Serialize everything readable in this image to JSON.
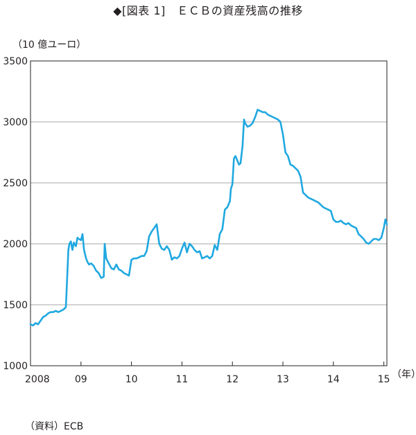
{
  "title": "◆[図表 1]　ＥＣＢの資産残高の推移",
  "source_note": "（資料）ECB",
  "chart_data": {
    "type": "line",
    "title": "◆[図表 1]　ＥＣＢの資産残高の推移",
    "ylabel": "（10 億ユーロ）",
    "xlabel": "（年）",
    "ylim": [
      1000,
      3500
    ],
    "y_ticks": [
      "1000",
      "1500",
      "2000",
      "2500",
      "3000",
      "3500"
    ],
    "x_ticks": [
      {
        "label": "2008",
        "year": 2008.0
      },
      {
        "label": "09",
        "year": 2009.0
      },
      {
        "label": "10",
        "year": 2010.0
      },
      {
        "label": "11",
        "year": 2011.0
      },
      {
        "label": "12",
        "year": 2012.0
      },
      {
        "label": "13",
        "year": 2013.0
      },
      {
        "label": "14",
        "year": 2014.0
      },
      {
        "label": "15",
        "year": 2015.0
      }
    ],
    "grid": "horizontal",
    "line_color": "#1fa8e0",
    "series": [
      {
        "x": [
          2008.0,
          2008.05,
          2008.1,
          2008.15,
          2008.2,
          2008.25,
          2008.3,
          2008.35,
          2008.4,
          2008.45,
          2008.5,
          2008.55,
          2008.6,
          2008.65,
          2008.7,
          2008.73,
          2008.75,
          2008.77,
          2008.8,
          2008.83,
          2008.86,
          2008.9,
          2008.93,
          2008.96,
          2009.0,
          2009.03,
          2009.06,
          2009.1,
          2009.13,
          2009.16,
          2009.2,
          2009.25,
          2009.3,
          2009.35,
          2009.4,
          2009.45,
          2009.47,
          2009.5,
          2009.55,
          2009.6,
          2009.65,
          2009.7,
          2009.75,
          2009.8,
          2009.85,
          2009.9,
          2009.95,
          2010.0,
          2010.05,
          2010.1,
          2010.15,
          2010.2,
          2010.25,
          2010.3,
          2010.35,
          2010.4,
          2010.45,
          2010.5,
          2010.55,
          2010.6,
          2010.65,
          2010.7,
          2010.75,
          2010.8,
          2010.85,
          2010.9,
          2010.95,
          2011.0,
          2011.05,
          2011.1,
          2011.15,
          2011.2,
          2011.25,
          2011.3,
          2011.35,
          2011.4,
          2011.45,
          2011.5,
          2011.55,
          2011.6,
          2011.65,
          2011.7,
          2011.75,
          2011.8,
          2011.85,
          2011.9,
          2011.95,
          2011.97,
          2012.0,
          2012.03,
          2012.06,
          2012.1,
          2012.13,
          2012.16,
          2012.2,
          2012.23,
          2012.25,
          2012.3,
          2012.35,
          2012.4,
          2012.45,
          2012.5,
          2012.55,
          2012.6,
          2012.65,
          2012.7,
          2012.75,
          2012.8,
          2012.85,
          2012.9,
          2012.95,
          2013.0,
          2013.05,
          2013.1,
          2013.15,
          2013.2,
          2013.25,
          2013.3,
          2013.35,
          2013.4,
          2013.45,
          2013.5,
          2013.55,
          2013.6,
          2013.65,
          2013.7,
          2013.75,
          2013.8,
          2013.85,
          2013.9,
          2013.95,
          2014.0,
          2014.05,
          2014.1,
          2014.15,
          2014.2,
          2014.25,
          2014.3,
          2014.35,
          2014.4,
          2014.45,
          2014.5,
          2014.55,
          2014.6,
          2014.65,
          2014.7,
          2014.75,
          2014.8,
          2014.85,
          2014.9,
          2014.95,
          2015.0,
          2015.03,
          2015.06
        ],
        "y": [
          1340,
          1330,
          1350,
          1340,
          1370,
          1400,
          1410,
          1430,
          1440,
          1440,
          1450,
          1440,
          1450,
          1460,
          1480,
          1750,
          1950,
          2000,
          2020,
          1950,
          2010,
          1980,
          2050,
          2040,
          2030,
          2080,
          1950,
          1880,
          1850,
          1830,
          1840,
          1820,
          1780,
          1760,
          1720,
          1730,
          2000,
          1880,
          1840,
          1800,
          1790,
          1830,
          1790,
          1780,
          1760,
          1750,
          1740,
          1870,
          1880,
          1880,
          1890,
          1900,
          1900,
          1940,
          2060,
          2100,
          2130,
          2160,
          2000,
          1960,
          1950,
          1980,
          1950,
          1870,
          1890,
          1880,
          1900,
          1960,
          2010,
          1930,
          2000,
          1980,
          1950,
          1930,
          1940,
          1880,
          1890,
          1900,
          1880,
          1900,
          1990,
          1950,
          2080,
          2120,
          2280,
          2300,
          2350,
          2450,
          2490,
          2700,
          2720,
          2680,
          2650,
          2660,
          2800,
          3020,
          2990,
          2960,
          2970,
          2990,
          3040,
          3100,
          3090,
          3080,
          3080,
          3060,
          3050,
          3040,
          3030,
          3020,
          3000,
          2900,
          2750,
          2720,
          2650,
          2640,
          2620,
          2600,
          2550,
          2420,
          2400,
          2380,
          2370,
          2360,
          2350,
          2340,
          2320,
          2300,
          2290,
          2280,
          2270,
          2200,
          2180,
          2180,
          2190,
          2170,
          2160,
          2170,
          2150,
          2140,
          2130,
          2080,
          2060,
          2040,
          2010,
          2000,
          2020,
          2040,
          2040,
          2030,
          2050,
          2130,
          2200,
          2160
        ]
      }
    ]
  }
}
